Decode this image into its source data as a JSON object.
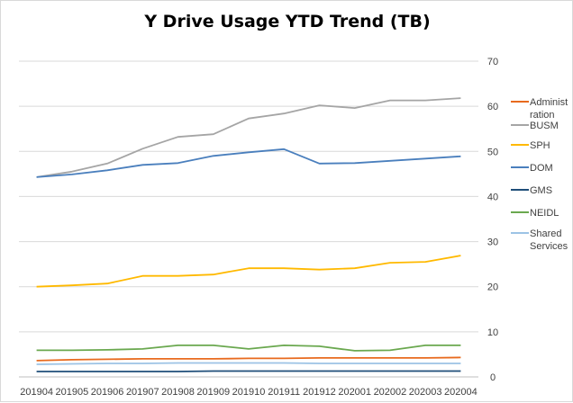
{
  "chart_data": {
    "type": "line",
    "title": "Y Drive Usage YTD Trend (TB)",
    "categories": [
      "201904",
      "201905",
      "201906",
      "201907",
      "201908",
      "201909",
      "201910",
      "201911",
      "201912",
      "202001",
      "202002",
      "202003",
      "202004"
    ],
    "ylim": [
      0,
      70
    ],
    "yticks": [
      0,
      10,
      20,
      30,
      40,
      50,
      60,
      70
    ],
    "y_axis_side": "right",
    "grid": true,
    "legend_position": "right",
    "series": [
      {
        "name": "Administ ration",
        "legend_lines": [
          "Administ",
          "ration"
        ],
        "color": "#e86a1e",
        "values": [
          3.6,
          3.8,
          3.9,
          4.0,
          4.0,
          4.0,
          4.1,
          4.1,
          4.2,
          4.2,
          4.2,
          4.2,
          4.3
        ]
      },
      {
        "name": "BUSM",
        "legend_lines": [
          "BUSM"
        ],
        "color": "#a5a5a5",
        "values": [
          44.3,
          45.5,
          47.3,
          50.6,
          53.2,
          53.8,
          57.3,
          58.4,
          60.2,
          59.6,
          61.3,
          61.3,
          61.8
        ]
      },
      {
        "name": "SPH",
        "legend_lines": [
          "SPH"
        ],
        "color": "#ffb900",
        "values": [
          20.0,
          20.3,
          20.7,
          22.4,
          22.4,
          22.7,
          24.1,
          24.1,
          23.8,
          24.1,
          25.3,
          25.5,
          26.9
        ]
      },
      {
        "name": "DOM",
        "legend_lines": [
          "DOM"
        ],
        "color": "#4a7fbd",
        "values": [
          44.3,
          44.9,
          45.8,
          47.0,
          47.4,
          49.0,
          49.8,
          50.5,
          47.3,
          47.4,
          47.9,
          48.4,
          48.9
        ]
      },
      {
        "name": "GMS",
        "legend_lines": [
          "GMS"
        ],
        "color": "#1f4e79",
        "values": [
          1.2,
          1.2,
          1.2,
          1.2,
          1.2,
          1.3,
          1.3,
          1.3,
          1.3,
          1.3,
          1.3,
          1.3,
          1.3
        ]
      },
      {
        "name": "NEIDL",
        "legend_lines": [
          "NEIDL"
        ],
        "color": "#6aa84f",
        "values": [
          5.9,
          5.9,
          6.0,
          6.2,
          7.0,
          7.0,
          6.2,
          7.0,
          6.8,
          5.8,
          5.9,
          7.0,
          7.0
        ]
      },
      {
        "name": "Shared Services",
        "legend_lines": [
          "Shared",
          "Services"
        ],
        "color": "#9cc3e5",
        "values": [
          2.8,
          2.9,
          3.0,
          3.0,
          3.1,
          3.1,
          3.1,
          3.1,
          3.0,
          3.0,
          3.0,
          3.0,
          3.0
        ]
      }
    ]
  }
}
